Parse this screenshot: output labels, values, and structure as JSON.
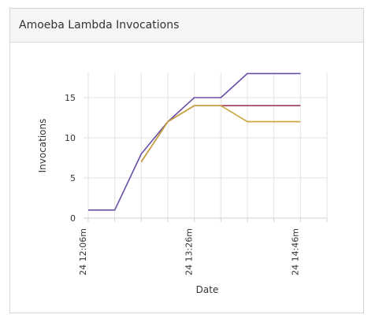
{
  "panel": {
    "title": "Amoeba Lambda Invocations"
  },
  "chart_data": {
    "type": "line",
    "xlabel": "Date",
    "ylabel": "Invocations",
    "ylim": [
      0,
      18
    ],
    "yticks": [
      0,
      5,
      10,
      15
    ],
    "x": [
      "24 12:06m",
      "24 12:26m",
      "24 12:46m",
      "24 13:06m",
      "24 13:26m",
      "24 13:46m",
      "24 14:06m",
      "24 14:26m",
      "24 14:46m"
    ],
    "xtick_labels": [
      "24 12:06m",
      "24 13:26m",
      "24 14:46m"
    ],
    "grid": true,
    "series": [
      {
        "color": "#6a4ea6",
        "values": [
          1,
          1,
          8,
          12,
          15,
          15,
          18,
          18,
          18
        ]
      },
      {
        "color": "#9c3d54",
        "values": [
          null,
          null,
          7,
          12,
          14,
          14,
          14,
          14,
          14
        ]
      },
      {
        "color": "#c8a33a",
        "values": [
          null,
          null,
          7,
          12,
          14,
          14,
          12,
          12,
          12
        ]
      }
    ]
  }
}
